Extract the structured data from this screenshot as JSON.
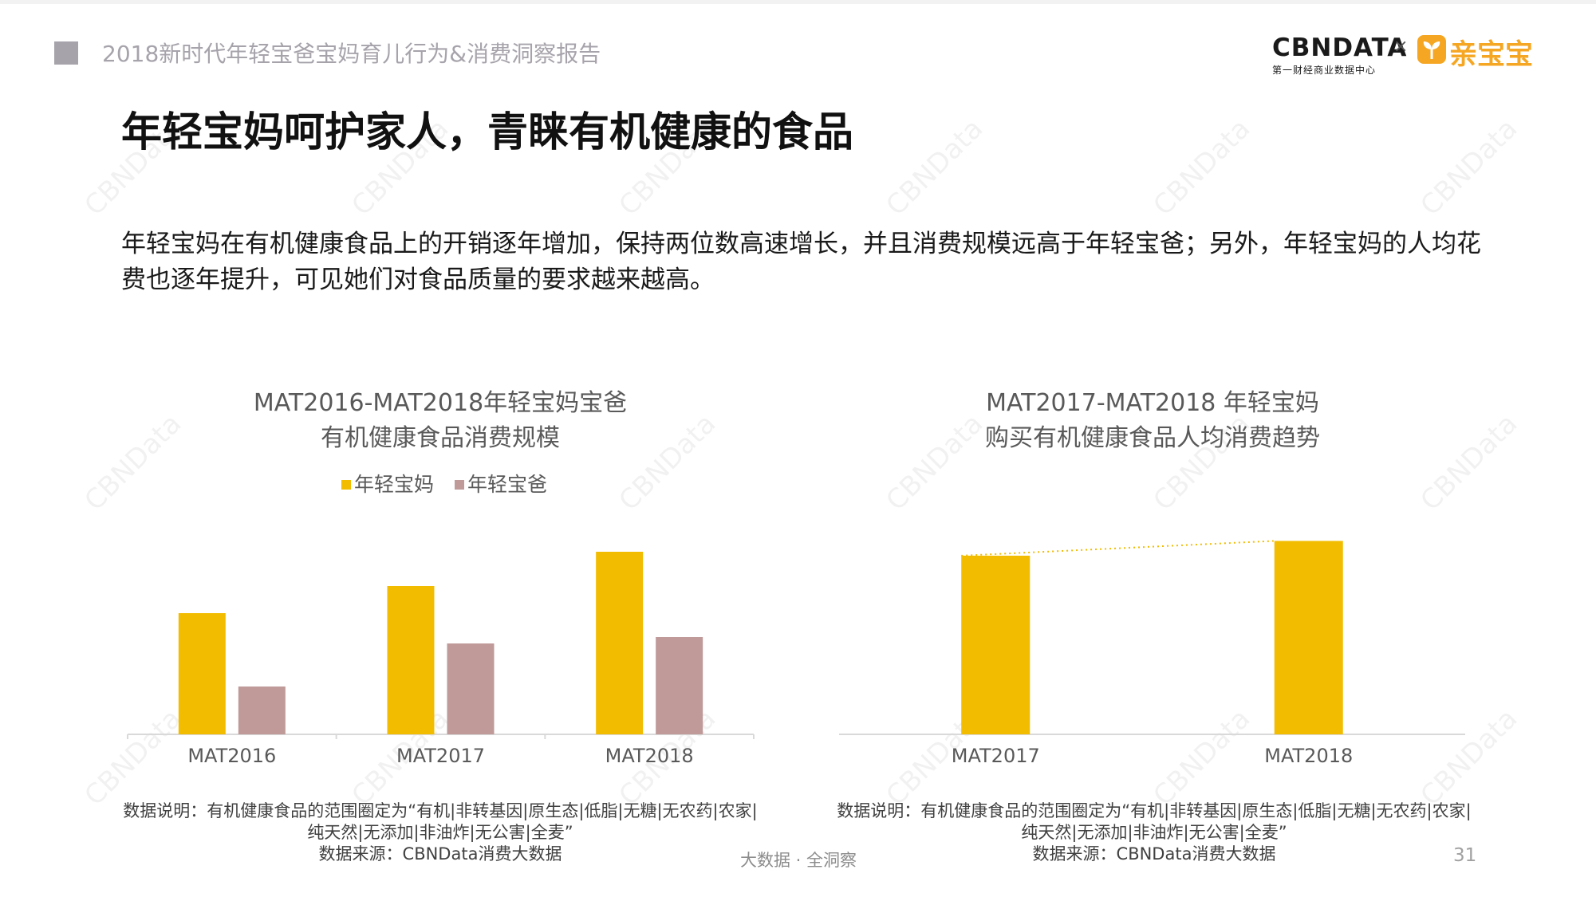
{
  "header": {
    "title": "2018新时代年轻宝爸宝妈育儿行为&消费洞察报告"
  },
  "logo": {
    "cbn_text": "CBNDATA",
    "cbn_sub": "第一财经商业数据中心",
    "separator": "×",
    "partner_text": "亲宝宝"
  },
  "slide": {
    "title": "年轻宝妈呵护家人，青睐有机健康的食品",
    "summary": "年轻宝妈在有机健康食品上的开销逐年增加，保持两位数高速增长，并且消费规模远高于年轻宝爸；另外，年轻宝妈的人均花费也逐年提升，可见她们对食品质量的要求越来越高。"
  },
  "watermark": {
    "text": "CBNData"
  },
  "chart_data": [
    {
      "type": "bar",
      "title_line1": "MAT2016-MAT2018年轻宝妈宝爸",
      "title_line2": "有机健康食品消费规模",
      "categories": [
        "MAT2016",
        "MAT2017",
        "MAT2018"
      ],
      "series": [
        {
          "name": "年轻宝妈",
          "color": "#f2bc00",
          "values": [
            1.52,
            1.86,
            2.29
          ]
        },
        {
          "name": "年轻宝爸",
          "color": "#bf9a99",
          "values": [
            0.6,
            1.14,
            1.22
          ]
        }
      ],
      "ylim": [
        0,
        2.5
      ],
      "grid": false,
      "legend_position": "top"
    },
    {
      "type": "bar",
      "title_line1": "MAT2017-MAT2018 年轻宝妈",
      "title_line2": "购买有机健康食品人均消费趋势",
      "categories": [
        "MAT2017",
        "MAT2018"
      ],
      "series": [
        {
          "name": "",
          "color": "#f2bc00",
          "values": [
            2.42,
            2.62
          ]
        }
      ],
      "trendline": {
        "style": "dotted",
        "color": "#f2bc00"
      },
      "ylim": [
        0,
        2.7
      ],
      "grid": false
    }
  ],
  "notes": {
    "left": {
      "line1": "数据说明：有机健康食品的范围圈定为“有机|非转基因|原生态|低脂|无糖|无农药|农家|",
      "line2": "纯天然|无添加|非油炸|无公害|全麦”",
      "line3": "数据来源：CBNData消费大数据"
    },
    "right": {
      "line1": "数据说明：有机健康食品的范围圈定为“有机|非转基因|原生态|低脂|无糖|无农药|农家|",
      "line2": "纯天然|无添加|非油炸|无公害|全麦”",
      "line3": "数据来源：CBNData消费大数据"
    }
  },
  "footer": {
    "center": "大数据 · 全洞察",
    "page_number": "31"
  }
}
